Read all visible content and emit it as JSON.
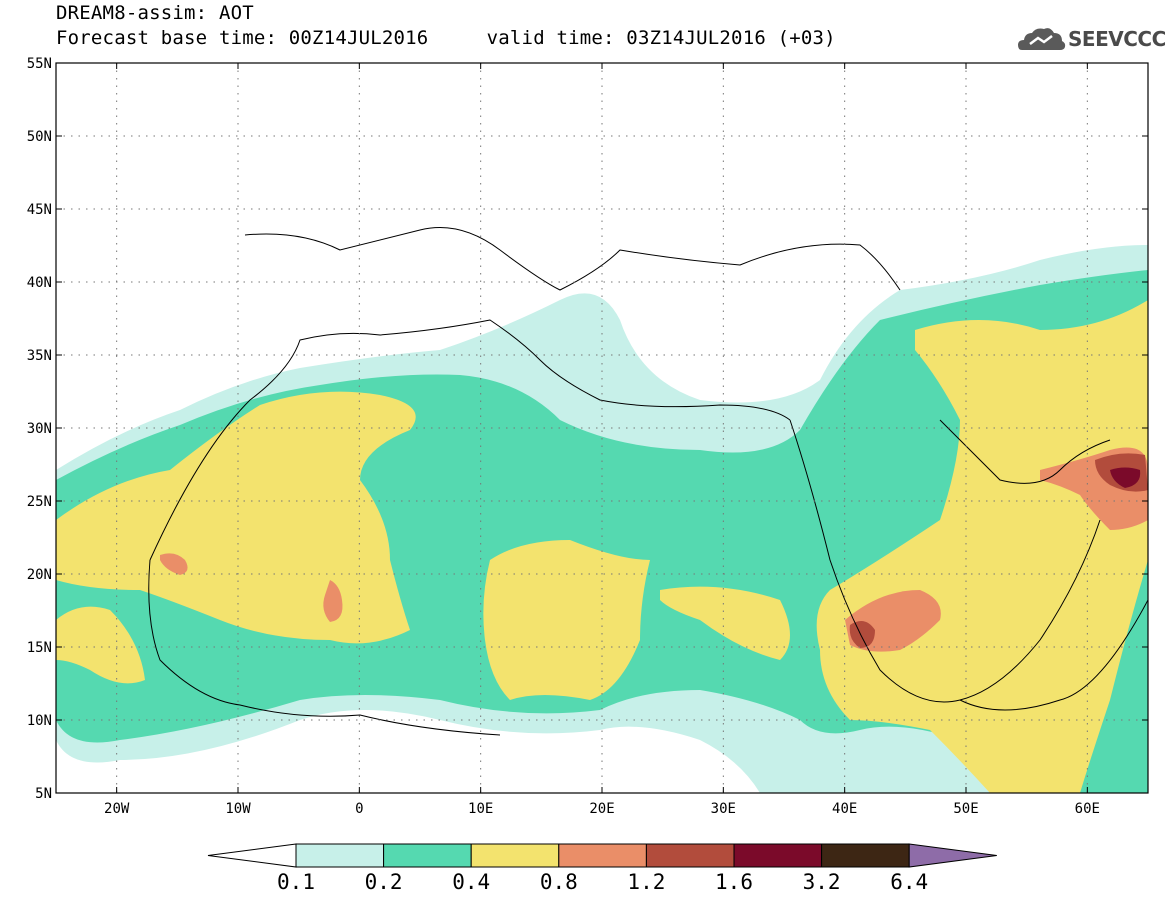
{
  "header": {
    "line1": "DREAM8-assim: AOT",
    "line2": "Forecast base time: 00Z14JUL2016     valid time: 03Z14JUL2016 (+03)"
  },
  "logo": {
    "text": "SEEVCCC",
    "icon": "cloud-icon"
  },
  "map": {
    "lon_range": [
      -25,
      65
    ],
    "lat_range": [
      5,
      55
    ],
    "lat_ticks": [
      {
        "value": 55,
        "label": "55N"
      },
      {
        "value": 50,
        "label": "50N"
      },
      {
        "value": 45,
        "label": "45N"
      },
      {
        "value": 40,
        "label": "40N"
      },
      {
        "value": 35,
        "label": "35N"
      },
      {
        "value": 30,
        "label": "30N"
      },
      {
        "value": 25,
        "label": "25N"
      },
      {
        "value": 20,
        "label": "20N"
      },
      {
        "value": 15,
        "label": "15N"
      },
      {
        "value": 10,
        "label": "10N"
      },
      {
        "value": 5,
        "label": "5N"
      }
    ],
    "lon_ticks": [
      {
        "value": -20,
        "label": "20W"
      },
      {
        "value": -10,
        "label": "10W"
      },
      {
        "value": 0,
        "label": "0"
      },
      {
        "value": 10,
        "label": "10E"
      },
      {
        "value": 20,
        "label": "20E"
      },
      {
        "value": 30,
        "label": "30E"
      },
      {
        "value": 40,
        "label": "40E"
      },
      {
        "value": 50,
        "label": "50E"
      },
      {
        "value": 60,
        "label": "60E"
      }
    ],
    "grid": "dotted"
  },
  "colorbar": {
    "labels": [
      "0.1",
      "0.2",
      "0.4",
      "0.8",
      "1.2",
      "1.6",
      "3.2",
      "6.4"
    ],
    "colors": [
      "#c7f0e9",
      "#55d9b0",
      "#f3e36e",
      "#ea8e68",
      "#b24c3c",
      "#7b0a2a",
      "#3d2614",
      "#8e6ca8"
    ],
    "under_color": "#ffffff"
  }
}
